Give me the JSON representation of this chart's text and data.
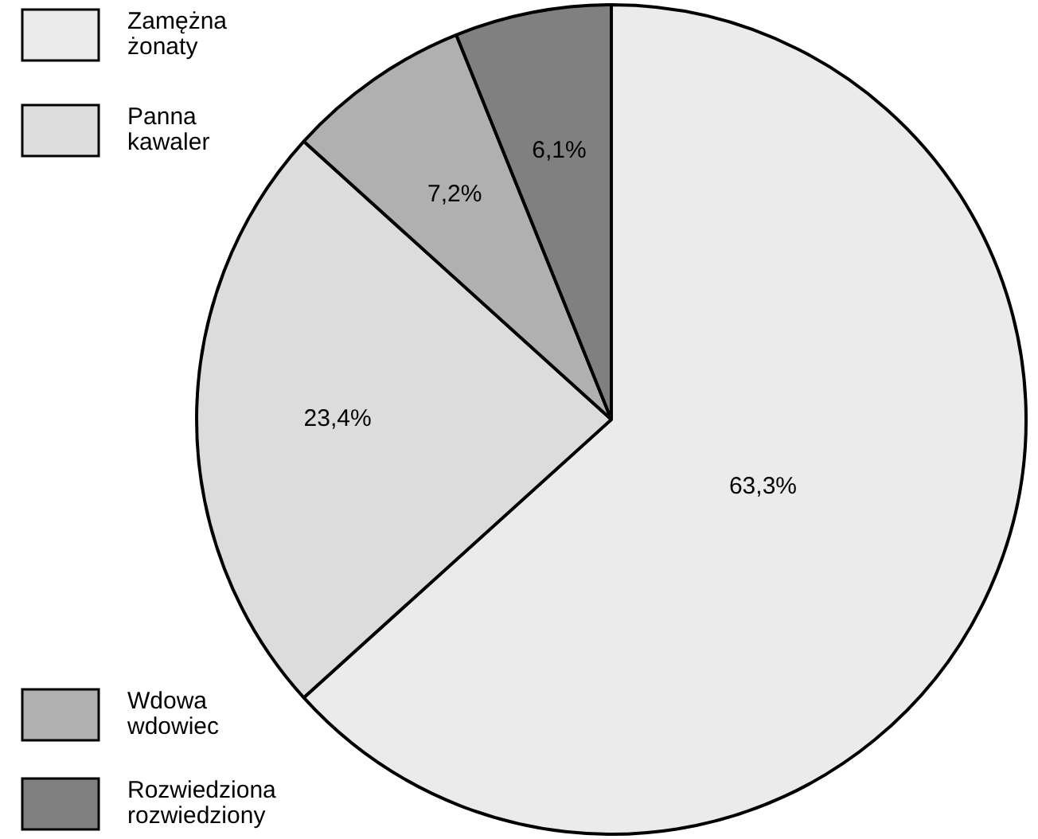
{
  "chart_data": {
    "type": "pie",
    "categories": [
      "Zamężna żonaty",
      "Panna kawaler",
      "Wdowa wdowiec",
      "Rozwiedziona rozwiedziony"
    ],
    "values": [
      63.3,
      23.4,
      7.2,
      6.1
    ],
    "colors": [
      "#ebebeb",
      "#dcdcdc",
      "#b0b0b0",
      "#808080"
    ],
    "value_labels": [
      "63,3%",
      "23,4%",
      "7,2%",
      "6,1%"
    ],
    "legend": "left"
  }
}
